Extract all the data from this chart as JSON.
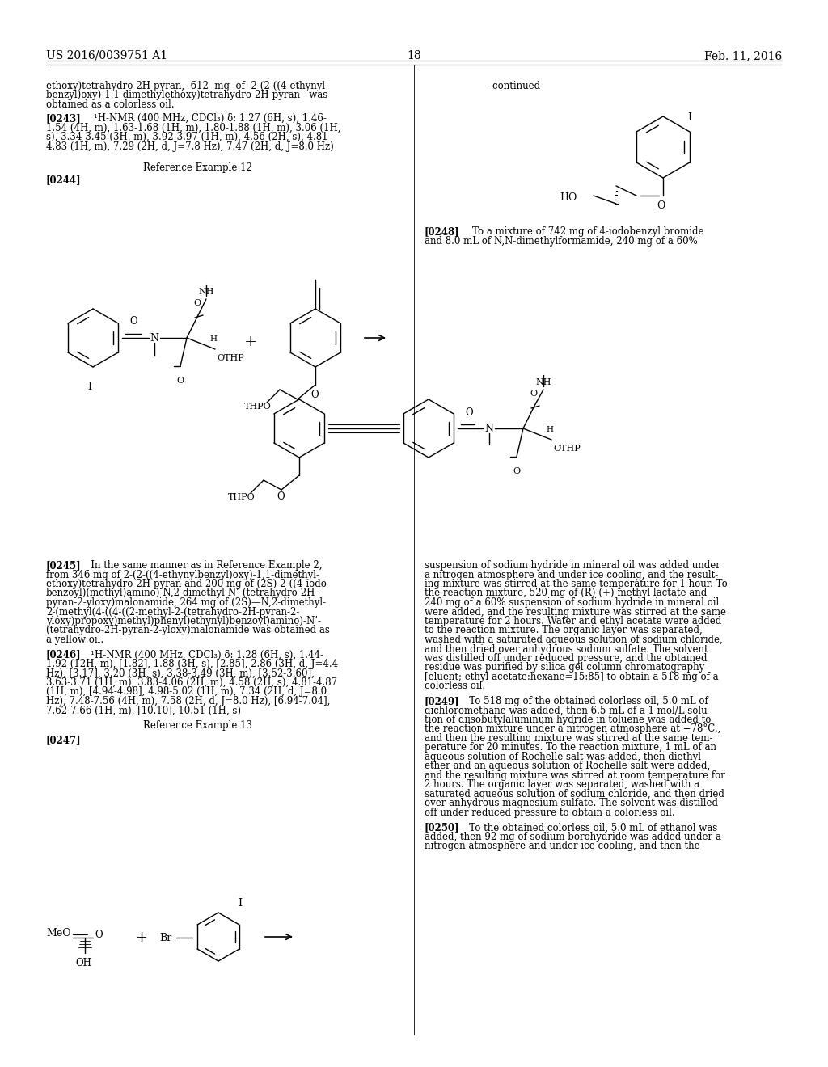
{
  "background_color": "#ffffff",
  "page_number": "18",
  "header_left": "US 2016/0039751 A1",
  "header_right": "Feb. 11, 2016",
  "figsize": [
    10.24,
    13.2
  ],
  "dpi": 100
}
